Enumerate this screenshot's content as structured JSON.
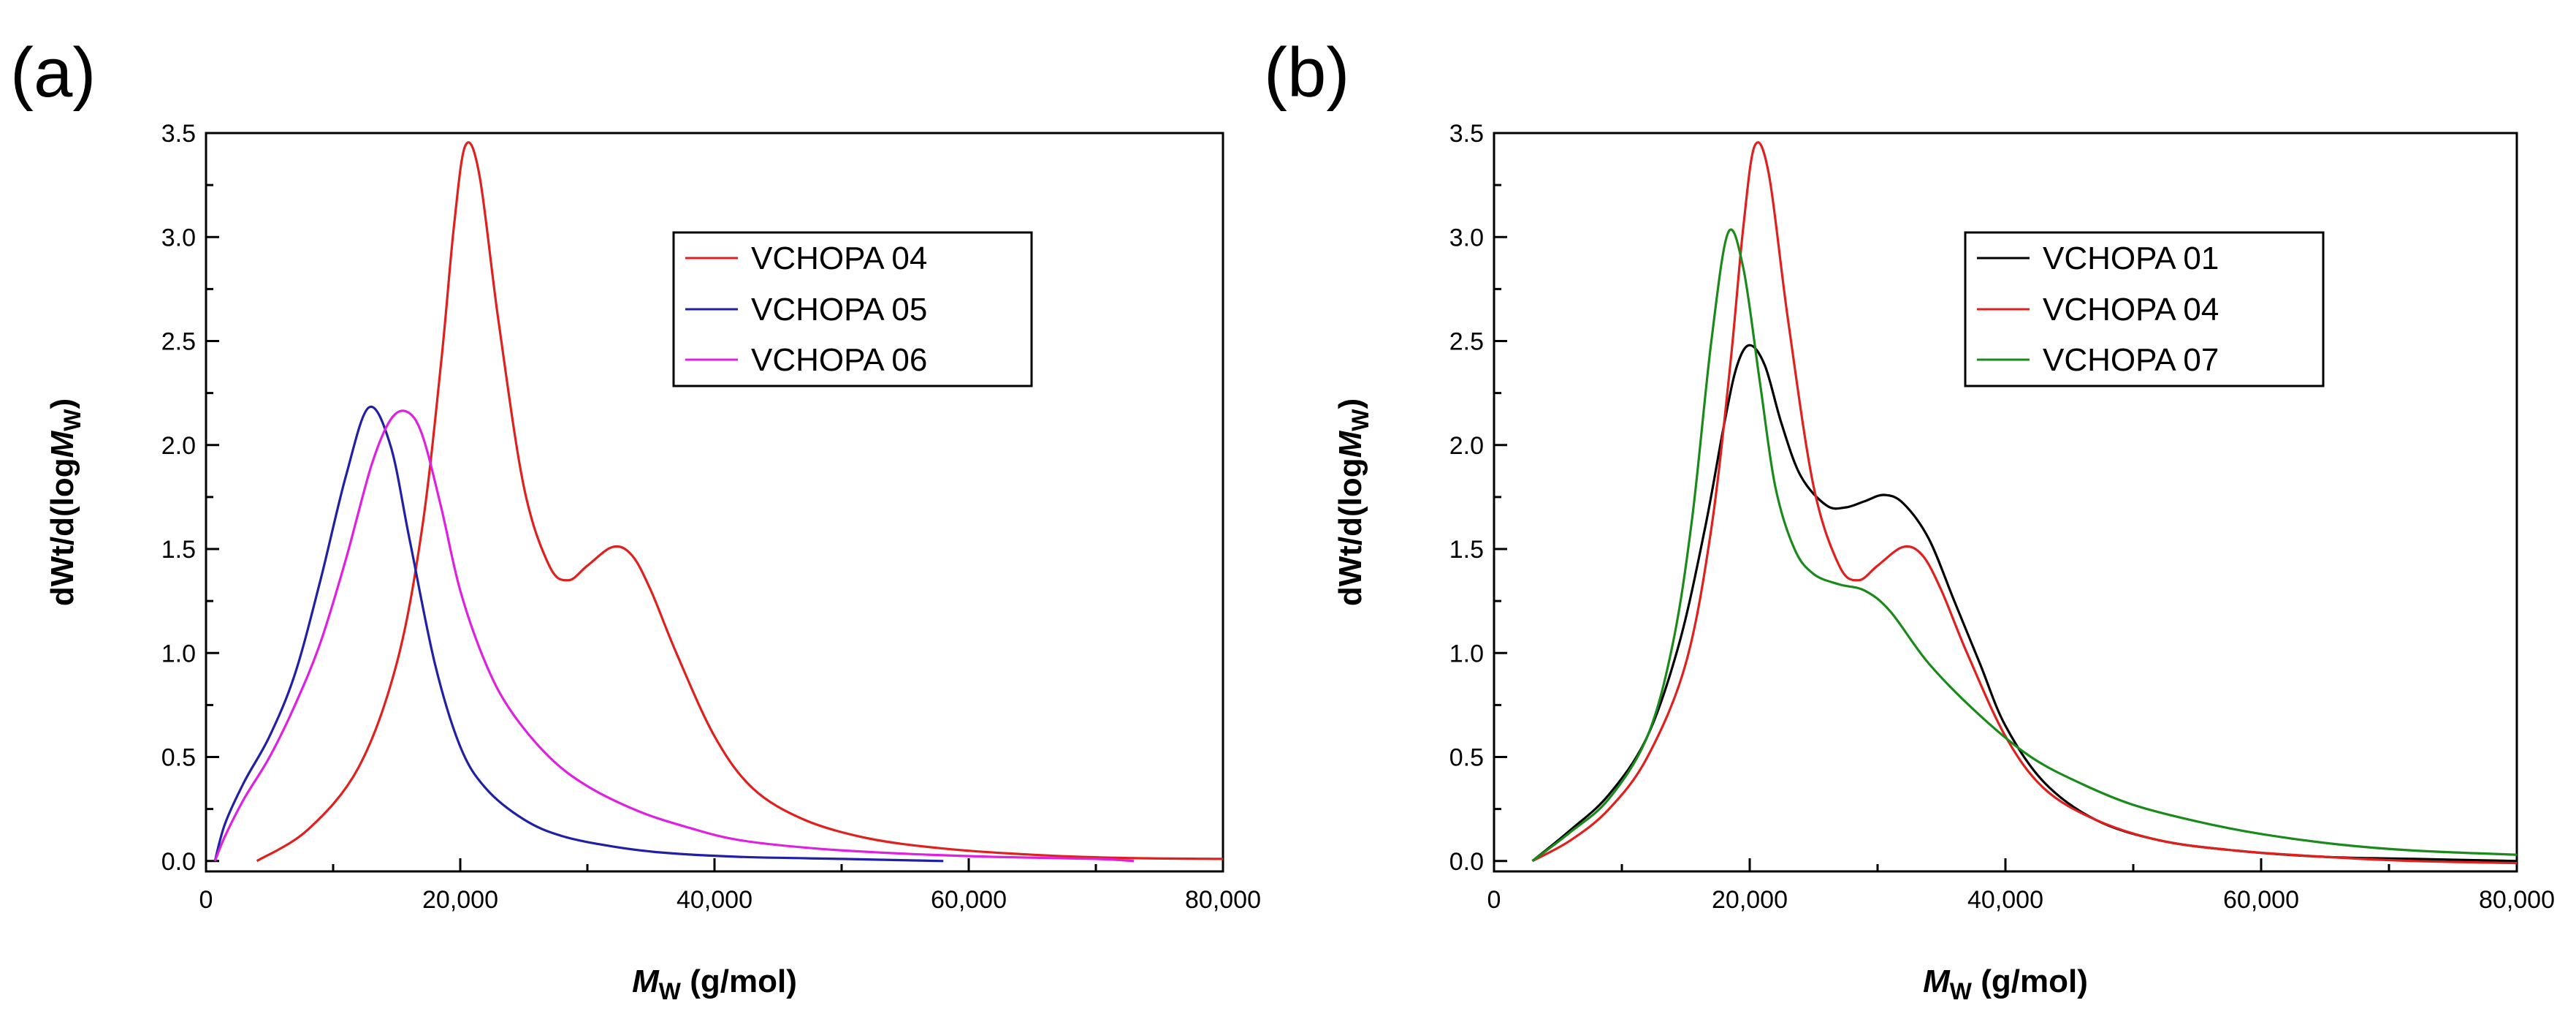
{
  "chart_data": [
    {
      "panel_label": "(a)",
      "type": "line",
      "xlabel_italic": "M",
      "xlabel_sub": "W",
      "xlabel_rest": " (g/mol)",
      "ylabel_pre": "dWt/d(log",
      "ylabel_italic": "M",
      "ylabel_sub": "W",
      "ylabel_post": ")",
      "xlim": [
        0,
        80000
      ],
      "ylim": [
        -0.05,
        3.5
      ],
      "xticks": [
        0,
        20000,
        40000,
        60000,
        80000
      ],
      "xtick_labels": [
        "0",
        "20,000",
        "40,000",
        "60,000",
        "80,000"
      ],
      "yticks": [
        0.0,
        0.5,
        1.0,
        1.5,
        2.0,
        2.5,
        3.0,
        3.5
      ],
      "ytick_labels": [
        "0.0",
        "0.5",
        "1.0",
        "1.5",
        "2.0",
        "2.5",
        "3.0",
        "3.5"
      ],
      "legend_position": "top-right",
      "series": [
        {
          "name": "VCHOPA 04",
          "color": "#e0201d",
          "x": [
            4000,
            8000,
            12000,
            15000,
            17000,
            18500,
            19500,
            20400,
            21500,
            23000,
            25000,
            27000,
            28500,
            30000,
            32000,
            33500,
            35000,
            37000,
            40000,
            43000,
            47000,
            52000,
            58000,
            65000,
            72000,
            80000
          ],
          "y": [
            0.0,
            0.15,
            0.45,
            0.95,
            1.6,
            2.4,
            3.05,
            3.44,
            3.3,
            2.6,
            1.8,
            1.42,
            1.35,
            1.42,
            1.51,
            1.47,
            1.3,
            1.0,
            0.6,
            0.35,
            0.2,
            0.11,
            0.06,
            0.03,
            0.015,
            0.01
          ]
        },
        {
          "name": "VCHOPA 05",
          "color": "#1f1fa8",
          "x": [
            700,
            1500,
            3000,
            5000,
            7000,
            9000,
            11000,
            12800,
            14500,
            16000,
            18000,
            20000,
            22000,
            25000,
            28000,
            32000,
            36000,
            42000,
            50000,
            58000
          ],
          "y": [
            0.0,
            0.18,
            0.38,
            0.6,
            0.9,
            1.35,
            1.85,
            2.18,
            2.0,
            1.55,
            0.95,
            0.55,
            0.35,
            0.2,
            0.12,
            0.07,
            0.04,
            0.02,
            0.01,
            0.0
          ],
          "x_end_min": 56000,
          "x_end_max": 58000
        },
        {
          "name": "VCHOPA 06",
          "color": "#e020e0",
          "x": [
            700,
            1500,
            3000,
            5000,
            7000,
            9000,
            11000,
            13000,
            14500,
            15800,
            17000,
            18500,
            20000,
            22000,
            24000,
            27000,
            30000,
            34000,
            38000,
            42000,
            48000,
            55000,
            62000,
            70000,
            73000
          ],
          "y": [
            0.0,
            0.12,
            0.3,
            0.5,
            0.75,
            1.05,
            1.45,
            1.9,
            2.12,
            2.16,
            2.05,
            1.7,
            1.3,
            0.95,
            0.72,
            0.5,
            0.36,
            0.24,
            0.16,
            0.1,
            0.06,
            0.035,
            0.02,
            0.01,
            0.0
          ]
        }
      ]
    },
    {
      "panel_label": "(b)",
      "type": "line",
      "xlabel_italic": "M",
      "xlabel_sub": "W",
      "xlabel_rest": " (g/mol)",
      "ylabel_pre": "dWt/d(log",
      "ylabel_italic": "M",
      "ylabel_sub": "W",
      "ylabel_post": ")",
      "xlim": [
        0,
        80000
      ],
      "ylim": [
        -0.05,
        3.5
      ],
      "xticks": [
        0,
        20000,
        40000,
        60000,
        80000
      ],
      "xtick_labels": [
        "0",
        "20,000",
        "40,000",
        "60,000",
        "80,000"
      ],
      "yticks": [
        0.0,
        0.5,
        1.0,
        1.5,
        2.0,
        2.5,
        3.0,
        3.5
      ],
      "ytick_labels": [
        "0.0",
        "0.5",
        "1.0",
        "1.5",
        "2.0",
        "2.5",
        "3.0",
        "3.5"
      ],
      "legend_position": "top-right",
      "series": [
        {
          "name": "VCHOPA 01",
          "color": "#000000",
          "x": [
            3000,
            6000,
            9000,
            12000,
            14500,
            16500,
            18000,
            19000,
            20000,
            21200,
            22500,
            24000,
            26000,
            27500,
            29000,
            30500,
            32000,
            34000,
            36000,
            38000,
            40000,
            43000,
            47000,
            52000,
            58000,
            65000,
            72000,
            80000
          ],
          "y": [
            0.0,
            0.15,
            0.32,
            0.6,
            1.05,
            1.6,
            2.1,
            2.38,
            2.48,
            2.38,
            2.1,
            1.85,
            1.71,
            1.7,
            1.73,
            1.76,
            1.72,
            1.55,
            1.25,
            0.95,
            0.65,
            0.38,
            0.2,
            0.1,
            0.05,
            0.02,
            0.01,
            0.0
          ]
        },
        {
          "name": "VCHOPA 04",
          "color": "#e0201d",
          "x": [
            3000,
            6000,
            9000,
            12000,
            15000,
            17000,
            18500,
            19500,
            20400,
            21500,
            23000,
            25000,
            27000,
            28500,
            30000,
            32000,
            33500,
            35000,
            37000,
            40000,
            43000,
            47000,
            52000,
            58000,
            65000,
            72000,
            80000
          ],
          "y": [
            0.0,
            0.1,
            0.25,
            0.5,
            0.95,
            1.6,
            2.4,
            3.05,
            3.44,
            3.3,
            2.6,
            1.8,
            1.42,
            1.35,
            1.42,
            1.51,
            1.47,
            1.3,
            1.0,
            0.6,
            0.35,
            0.2,
            0.1,
            0.05,
            0.02,
            0.0,
            -0.01
          ]
        },
        {
          "name": "VCHOPA 07",
          "color": "#1a8a1a",
          "x": [
            3000,
            6000,
            9000,
            12000,
            14000,
            15500,
            17000,
            18300,
            19500,
            20800,
            22000,
            23500,
            25000,
            27000,
            29000,
            31000,
            34000,
            38000,
            42000,
            46000,
            50000,
            55000,
            60000,
            66000,
            72000,
            80000
          ],
          "y": [
            0.0,
            0.14,
            0.3,
            0.6,
            1.05,
            1.65,
            2.5,
            3.02,
            2.85,
            2.3,
            1.8,
            1.5,
            1.38,
            1.33,
            1.3,
            1.2,
            0.95,
            0.7,
            0.5,
            0.37,
            0.27,
            0.19,
            0.13,
            0.08,
            0.05,
            0.03
          ]
        }
      ]
    }
  ]
}
